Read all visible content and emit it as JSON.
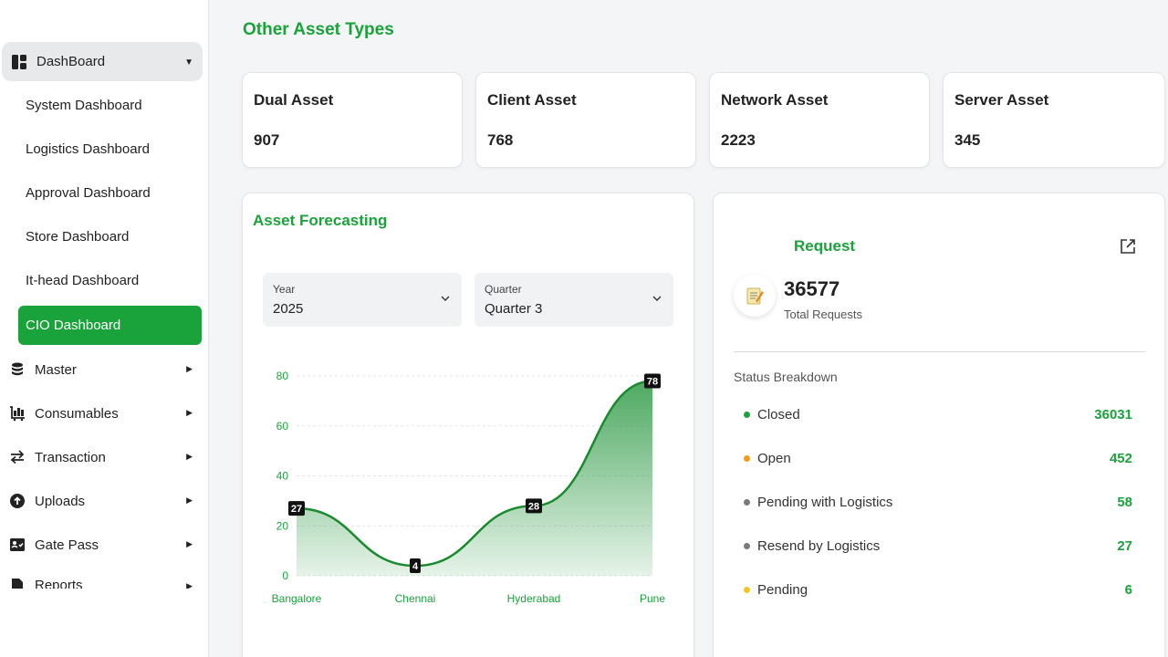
{
  "sidebar": {
    "parent": {
      "label": "DashBoard",
      "icon": "dashboard-icon"
    },
    "sub_items": [
      "System Dashboard",
      "Logistics Dashboard",
      "Approval Dashboard",
      "Store Dashboard",
      "It-head Dashboard"
    ],
    "active_item": "CIO Dashboard",
    "items": [
      {
        "label": "Master",
        "icon": "database-icon"
      },
      {
        "label": "Consumables",
        "icon": "cart-icon"
      },
      {
        "label": "Transaction",
        "icon": "transfer-icon"
      },
      {
        "label": "Uploads",
        "icon": "upload-icon"
      },
      {
        "label": "Gate Pass",
        "icon": "pass-icon"
      },
      {
        "label": "Reports",
        "icon": "report-icon"
      }
    ],
    "accent_color": "#1aa33a"
  },
  "main": {
    "section_title": "Other Asset Types",
    "asset_cards": [
      {
        "label": "Dual Asset",
        "value": "907"
      },
      {
        "label": "Client Asset",
        "value": "768"
      },
      {
        "label": "Network Asset",
        "value": "2223"
      },
      {
        "label": "Server Asset",
        "value": "345"
      }
    ]
  },
  "forecast": {
    "title": "Asset Forecasting",
    "year": {
      "label": "Year",
      "value": "2025"
    },
    "quarter": {
      "label": "Quarter",
      "value": "Quarter 3"
    }
  },
  "chart_data": {
    "type": "area",
    "categories": [
      "Bangalore",
      "Chennai",
      "Hyderabad",
      "Pune"
    ],
    "values": [
      27,
      4,
      28,
      78
    ],
    "ylim": [
      0,
      80
    ],
    "yticks": [
      0,
      20,
      40,
      60,
      80
    ],
    "title": "",
    "xlabel": "",
    "ylabel": "",
    "grid": true,
    "color": "#1a8a2e"
  },
  "request": {
    "title": "Request",
    "total_value": "36577",
    "total_label": "Total Requests",
    "breakdown_title": "Status Breakdown",
    "statuses": [
      {
        "name": "Closed",
        "count": "36031",
        "color": "#1aa33a"
      },
      {
        "name": "Open",
        "count": "452",
        "color": "#f39c12"
      },
      {
        "name": "Pending with Logistics",
        "count": "58",
        "color": "#7a7a7a"
      },
      {
        "name": "Resend by Logistics",
        "count": "27",
        "color": "#7a7a7a"
      },
      {
        "name": "Pending",
        "count": "6",
        "color": "#f5c518"
      }
    ]
  }
}
